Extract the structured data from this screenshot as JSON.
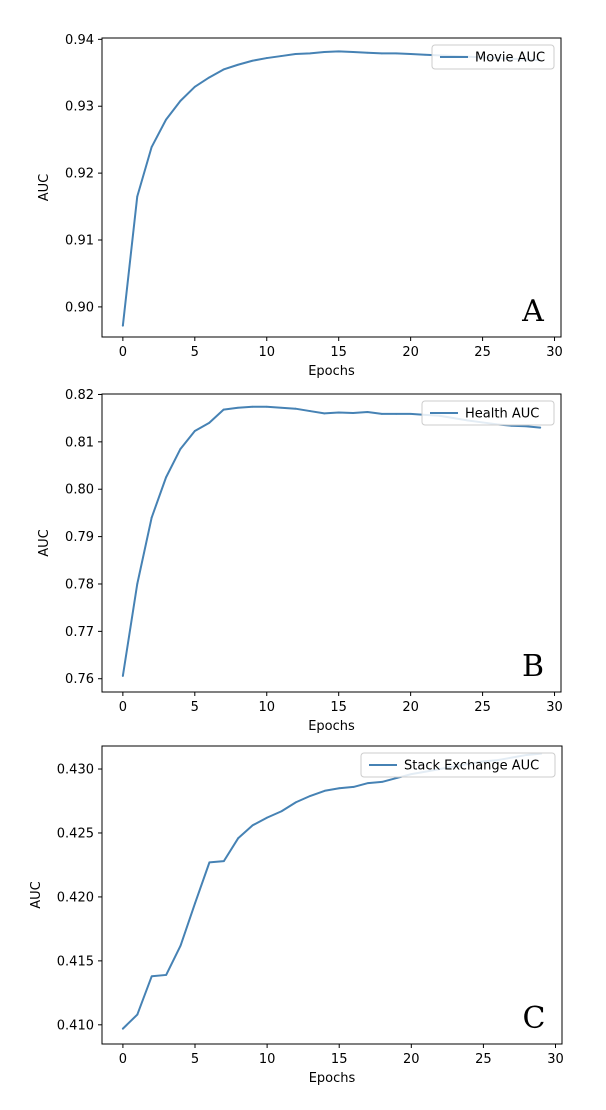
{
  "chart_data": [
    {
      "type": "line",
      "panel_label": "A",
      "xlabel": "Epochs",
      "ylabel": "AUC",
      "xlim": [
        -1.45,
        30.45
      ],
      "ylim": [
        0.8955,
        0.9402
      ],
      "xticks": [
        0,
        5,
        10,
        15,
        20,
        25,
        30
      ],
      "yticks": [
        0.9,
        0.91,
        0.92,
        0.93,
        0.94
      ],
      "ytick_labels": [
        "0.90",
        "0.91",
        "0.92",
        "0.93",
        "0.94"
      ],
      "legend_position": "upper-right",
      "grid": false,
      "series": [
        {
          "name": "Movie AUC",
          "color": "#4682b4",
          "x": [
            0,
            1,
            2,
            3,
            4,
            5,
            6,
            7,
            8,
            9,
            10,
            11,
            12,
            13,
            14,
            15,
            16,
            17,
            18,
            19,
            20,
            21,
            22,
            23,
            24,
            25,
            26,
            27,
            28,
            29
          ],
          "values": [
            0.8972,
            0.9165,
            0.9239,
            0.928,
            0.9308,
            0.9329,
            0.9343,
            0.9355,
            0.9362,
            0.9368,
            0.9372,
            0.9375,
            0.9378,
            0.9379,
            0.9381,
            0.9382,
            0.9381,
            0.938,
            0.9379,
            0.9379,
            0.9378,
            0.9377,
            0.9376,
            0.9375,
            0.9374,
            0.9373,
            0.9372,
            0.9371,
            0.937,
            0.9369
          ]
        }
      ]
    },
    {
      "type": "line",
      "panel_label": "B",
      "xlabel": "Epochs",
      "ylabel": "AUC",
      "xlim": [
        -1.45,
        30.45
      ],
      "ylim": [
        0.7572,
        0.8201
      ],
      "xticks": [
        0,
        5,
        10,
        15,
        20,
        25,
        30
      ],
      "yticks": [
        0.76,
        0.77,
        0.78,
        0.79,
        0.8,
        0.81,
        0.82
      ],
      "ytick_labels": [
        "0.76",
        "0.77",
        "0.78",
        "0.79",
        "0.80",
        "0.81",
        "0.82"
      ],
      "legend_position": "upper-right",
      "grid": false,
      "series": [
        {
          "name": "Health AUC",
          "color": "#4682b4",
          "x": [
            0,
            1,
            2,
            3,
            4,
            5,
            6,
            7,
            8,
            9,
            10,
            11,
            12,
            13,
            14,
            15,
            16,
            17,
            18,
            19,
            20,
            21,
            22,
            23,
            24,
            25,
            26,
            27,
            28,
            29
          ],
          "values": [
            0.7606,
            0.78,
            0.794,
            0.8025,
            0.8085,
            0.8123,
            0.814,
            0.8168,
            0.8172,
            0.8174,
            0.8174,
            0.8172,
            0.817,
            0.8165,
            0.816,
            0.8162,
            0.8161,
            0.8163,
            0.8159,
            0.8159,
            0.8159,
            0.8157,
            0.8155,
            0.815,
            0.8145,
            0.8141,
            0.8137,
            0.8134,
            0.8133,
            0.813
          ]
        }
      ]
    },
    {
      "type": "line",
      "panel_label": "C",
      "xlabel": "Epochs",
      "ylabel": "AUC",
      "xlim": [
        -1.45,
        30.45
      ],
      "ylim": [
        0.4085,
        0.4318
      ],
      "xticks": [
        0,
        5,
        10,
        15,
        20,
        25,
        30
      ],
      "yticks": [
        0.41,
        0.415,
        0.42,
        0.425,
        0.43
      ],
      "ytick_labels": [
        "0.410",
        "0.415",
        "0.420",
        "0.425",
        "0.430"
      ],
      "legend_position": "upper-right",
      "grid": false,
      "series": [
        {
          "name": "Stack Exchange AUC",
          "color": "#4682b4",
          "x": [
            0,
            1,
            2,
            3,
            4,
            5,
            6,
            7,
            8,
            9,
            10,
            11,
            12,
            13,
            14,
            15,
            16,
            17,
            18,
            19,
            20,
            21,
            22,
            23,
            24,
            25,
            26,
            27,
            28,
            29
          ],
          "values": [
            0.4097,
            0.4108,
            0.4138,
            0.4139,
            0.4162,
            0.4195,
            0.4227,
            0.4228,
            0.4246,
            0.4256,
            0.4262,
            0.4267,
            0.4274,
            0.4279,
            0.4283,
            0.4285,
            0.4286,
            0.4289,
            0.429,
            0.4293,
            0.4296,
            0.4298,
            0.43,
            0.4302,
            0.4304,
            0.4306,
            0.4307,
            0.4309,
            0.4311,
            0.4312
          ]
        }
      ]
    }
  ]
}
